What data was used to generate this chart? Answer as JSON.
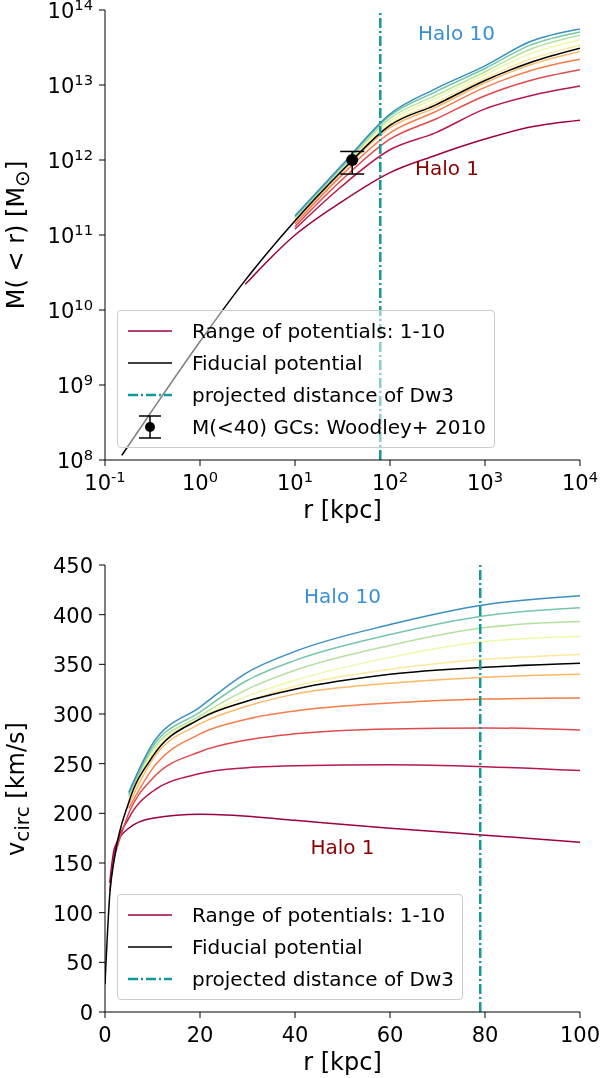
{
  "chart_data": [
    {
      "type": "line",
      "xlabel": "r [kpc]",
      "ylabel": "M( < r) [M$_{⊙}$]",
      "log": "xy",
      "xlim": [
        0.1,
        10000
      ],
      "ylim": [
        100000000,
        100000000000000
      ],
      "xticks": [
        {
          "value": 0.1,
          "label": "10$^{-1}$"
        },
        {
          "value": 1,
          "label": "10$^{0}$"
        },
        {
          "value": 10,
          "label": "10$^{1}$"
        },
        {
          "value": 100,
          "label": "10$^{2}$"
        },
        {
          "value": 1000,
          "label": "10$^{3}$"
        },
        {
          "value": 10000,
          "label": "10$^{4}$"
        }
      ],
      "yticks": [
        {
          "value": 100000000,
          "label": "10$^{8}$"
        },
        {
          "value": 1000000000,
          "label": "10$^{9}$"
        },
        {
          "value": 10000000000,
          "label": "10$^{10}$"
        },
        {
          "value": 100000000000,
          "label": "10$^{11}$"
        },
        {
          "value": 1000000000000,
          "label": "10$^{12}$"
        },
        {
          "value": 10000000000000,
          "label": "10$^{13}$"
        },
        {
          "value": 100000000000000,
          "label": "10$^{14}$"
        }
      ],
      "x": [
        0.15,
        0.3,
        1,
        3,
        10,
        30,
        100,
        300,
        1000,
        3000,
        10000
      ],
      "series": [
        {
          "name": "Range of potentials: 1-10",
          "color": "#9e0142",
          "values": [
            null,
            null,
            null,
            22000000000.0,
            100000000000.0,
            270000000000.0,
            680000000000.0,
            1150000000000.0,
            1900000000000.0,
            2750000000000.0,
            3400000000000.0
          ]
        },
        {
          "color": "#b8194b",
          "values": [
            null,
            null,
            null,
            null,
            120000000000.0,
            430000000000.0,
            1370000000000.0,
            2300000000000.0,
            4800000000000.0,
            7200000000000.0,
            9700000000000.0
          ]
        },
        {
          "color": "#e04a4c",
          "values": [
            null,
            null,
            null,
            null,
            130000000000.0,
            520000000000.0,
            1900000000000.0,
            3500000000000.0,
            7200000000000.0,
            11500000000000.0,
            16000000000000.0
          ]
        },
        {
          "color": "#f67c4a",
          "values": [
            null,
            null,
            null,
            null,
            140000000000.0,
            600000000000.0,
            2300000000000.0,
            4400000000000.0,
            9300000000000.0,
            15500000000000.0,
            22000000000000.0
          ]
        },
        {
          "color": "#fdb868",
          "values": [
            null,
            null,
            null,
            null,
            150000000000.0,
            660000000000.0,
            2700000000000.0,
            5000000000000.0,
            10700000000000.0,
            18600000000000.0,
            28000000000000.0
          ]
        },
        {
          "color": "#fee89a",
          "values": [
            null,
            null,
            null,
            null,
            160000000000.0,
            680000000000.0,
            3000000000000.0,
            5800000000000.0,
            12300000000000.0,
            22000000000000.0,
            34000000000000.0
          ]
        },
        {
          "color": "#eef8a8",
          "values": [
            null,
            null,
            null,
            null,
            165000000000.0,
            710000000000.0,
            3300000000000.0,
            6600000000000.0,
            13800000000000.0,
            26000000000000.0,
            40000000000000.0
          ]
        },
        {
          "color": "#b5e1a0",
          "values": [
            null,
            null,
            null,
            null,
            170000000000.0,
            740000000000.0,
            3600000000000.0,
            7200000000000.0,
            15000000000000.0,
            30000000000000.0,
            46000000000000.0
          ]
        },
        {
          "color": "#76c7a6",
          "values": [
            null,
            null,
            null,
            null,
            175000000000.0,
            780000000000.0,
            3900000000000.0,
            8100000000000.0,
            16600000000000.0,
            34000000000000.0,
            51000000000000.0
          ]
        },
        {
          "color": "#3a8fc0",
          "values": [
            null,
            null,
            null,
            null,
            180000000000.0,
            810000000000.0,
            4100000000000.0,
            8900000000000.0,
            18000000000000.0,
            38000000000000.0,
            56000000000000.0
          ]
        },
        {
          "name": "Fiducial potential",
          "color": "#000000",
          "values": [
            115000000.0,
            420000000.0,
            3800000000.0,
            25000000000.0,
            155000000000.0,
            680000000000.0,
            2900000000000.0,
            5400000000000.0,
            11500000000000.0,
            20000000000000.0,
            31000000000000.0
          ]
        },
        {
          "type": "scatter",
          "name": "M(<40) GCs: Woodley+ 2010",
          "color": "#000000",
          "marker": "circle",
          "x": [
            40
          ],
          "values": [
            1000000000000.0
          ],
          "errors": [
            [
              650000000000.0,
              1300000000000.0
            ]
          ]
        }
      ],
      "ref_lines": [
        {
          "axis": "x",
          "value": 79,
          "label": "projected distance of Dw3",
          "color": "#129a9a",
          "line_style": "dashdot"
        }
      ],
      "annotations": [
        "Halo 10",
        "Halo 1"
      ],
      "legend": "bottom left"
    },
    {
      "type": "line",
      "xlabel": "r [kpc]",
      "ylabel": "v$_{circ}$ [km/s]",
      "xlim": [
        0,
        100
      ],
      "ylim": [
        0,
        450
      ],
      "xticks": [
        0,
        20,
        40,
        60,
        80,
        100
      ],
      "yticks": [
        0,
        50,
        100,
        150,
        200,
        250,
        300,
        350,
        400,
        450
      ],
      "x": [
        0,
        1,
        2,
        5,
        10,
        20,
        30,
        40,
        60,
        80,
        100
      ],
      "series": [
        {
          "name": "Range of potentials: 1-10",
          "color": "#9e0142",
          "values": [
            null,
            130,
            165,
            185,
            195,
            199,
            197,
            193,
            185,
            178,
            171
          ]
        },
        {
          "color": "#b8194b",
          "values": [
            null,
            122,
            160,
            195,
            222,
            240,
            246,
            248,
            249,
            247,
            243
          ]
        },
        {
          "color": "#e04a4c",
          "values": [
            null,
            null,
            157,
            200,
            235,
            262,
            274,
            280,
            285,
            286,
            284
          ]
        },
        {
          "color": "#f67c4a",
          "values": [
            null,
            null,
            null,
            205,
            245,
            280,
            295,
            303,
            311,
            315,
            316
          ]
        },
        {
          "color": "#fdb868",
          "values": [
            null,
            null,
            null,
            209,
            254,
            290,
            308,
            320,
            331,
            337,
            340
          ]
        },
        {
          "color": "#fee89a",
          "values": [
            null,
            null,
            null,
            213,
            258,
            295,
            313,
            328,
            345,
            355,
            360
          ]
        },
        {
          "color": "#eef8a8",
          "values": [
            null,
            null,
            null,
            215,
            261,
            296,
            318,
            334,
            357,
            373,
            378
          ]
        },
        {
          "color": "#b5e1a0",
          "values": [
            null,
            null,
            null,
            217,
            264,
            298,
            325,
            344,
            369,
            387,
            393
          ]
        },
        {
          "color": "#76c7a6",
          "values": [
            null,
            null,
            null,
            219,
            267,
            302,
            334,
            354,
            380,
            399,
            407
          ]
        },
        {
          "color": "#3a8fc0",
          "values": [
            null,
            null,
            null,
            221,
            270,
            307,
            342,
            363,
            390,
            410,
            419
          ]
        },
        {
          "name": "Fiducial potential",
          "color": "#000000",
          "values": [
            28,
            118,
            155,
            211,
            257,
            295,
            313,
            325,
            340,
            347,
            351
          ]
        }
      ],
      "ref_lines": [
        {
          "axis": "x",
          "value": 79,
          "label": "projected distance of Dw3",
          "color": "#129a9a",
          "line_style": "dashdot"
        }
      ],
      "annotations": [
        "Halo 10",
        "Halo 1"
      ],
      "legend": "bottom left"
    }
  ]
}
